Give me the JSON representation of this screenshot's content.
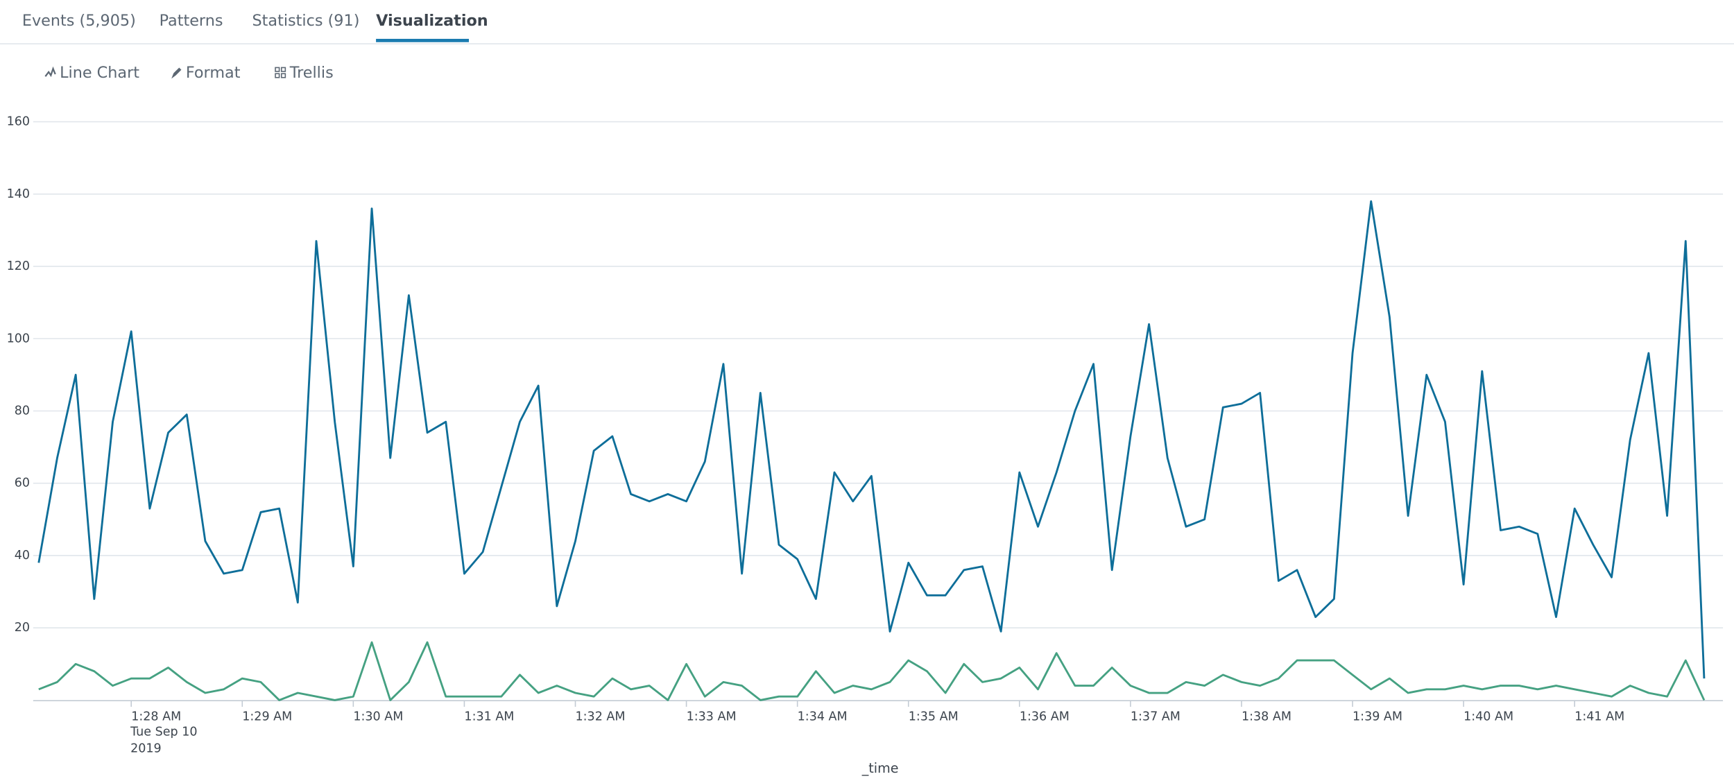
{
  "tabs": [
    "Events (5,905)",
    "Patterns",
    "Statistics (91)",
    "Visualization"
  ],
  "active_tab": 3,
  "toolbar": [
    "Line Chart",
    "Format",
    "Trellis"
  ],
  "chart_data": {
    "type": "line",
    "x_label": "_time",
    "date_label": "Tue Sep 10",
    "year_label": "2019",
    "categories": [
      null,
      null,
      null,
      null,
      null,
      "1:28 AM",
      null,
      null,
      null,
      null,
      null,
      "1:29 AM",
      null,
      null,
      null,
      null,
      null,
      "1:30 AM",
      null,
      null,
      null,
      null,
      null,
      "1:31 AM",
      null,
      null,
      null,
      null,
      null,
      "1:32 AM",
      null,
      null,
      null,
      null,
      null,
      "1:33 AM",
      null,
      null,
      null,
      null,
      null,
      "1:34 AM",
      null,
      null,
      null,
      null,
      null,
      "1:35 AM",
      null,
      null,
      null,
      null,
      null,
      "1:36 AM",
      null,
      null,
      null,
      null,
      null,
      "1:37 AM",
      null,
      null,
      null,
      null,
      null,
      "1:38 AM",
      null,
      null,
      null,
      null,
      null,
      "1:39 AM",
      null,
      null,
      null,
      null,
      null,
      "1:40 AM",
      null,
      null,
      null,
      null,
      null,
      "1:41 AM",
      null,
      null,
      null,
      null,
      null,
      null,
      null
    ],
    "series": [
      {
        "color": "#0e6e99",
        "values": [
          38,
          67,
          90,
          28,
          77,
          102,
          53,
          74,
          79,
          44,
          35,
          36,
          52,
          53,
          27,
          127,
          77,
          37,
          136,
          67,
          112,
          74,
          77,
          35,
          41,
          59,
          77,
          87,
          26,
          44,
          69,
          73,
          57,
          55,
          57,
          55,
          66,
          93,
          35,
          85,
          43,
          39,
          28,
          63,
          55,
          62,
          19,
          38,
          29,
          29,
          36,
          37,
          19,
          63,
          48,
          63,
          80,
          93,
          36,
          73,
          104,
          67,
          48,
          50,
          81,
          82,
          85,
          33,
          36,
          23,
          28,
          96,
          138,
          106,
          51,
          90,
          77,
          32,
          91,
          47,
          48,
          46,
          23,
          53,
          43,
          34,
          72,
          96,
          51,
          127,
          6
        ]
      },
      {
        "color": "#45a182",
        "values": [
          3,
          5,
          10,
          8,
          4,
          6,
          6,
          9,
          5,
          2,
          3,
          6,
          5,
          0,
          2,
          1,
          0,
          1,
          16,
          0,
          5,
          16,
          1,
          1,
          1,
          1,
          7,
          2,
          4,
          2,
          1,
          6,
          3,
          4,
          0,
          10,
          1,
          5,
          4,
          0,
          1,
          1,
          8,
          2,
          4,
          3,
          5,
          11,
          8,
          2,
          10,
          5,
          6,
          9,
          3,
          13,
          4,
          4,
          9,
          4,
          2,
          2,
          5,
          4,
          7,
          5,
          4,
          6,
          11,
          11,
          11,
          7,
          3,
          6,
          2,
          3,
          3,
          4,
          3,
          4,
          4,
          3,
          4,
          3,
          2,
          1,
          4,
          2,
          1,
          11,
          0
        ]
      }
    ],
    "ylim": [
      0,
      160
    ],
    "yticks": [
      20,
      40,
      60,
      80,
      100,
      120,
      140,
      160
    ],
    "grid": true
  }
}
